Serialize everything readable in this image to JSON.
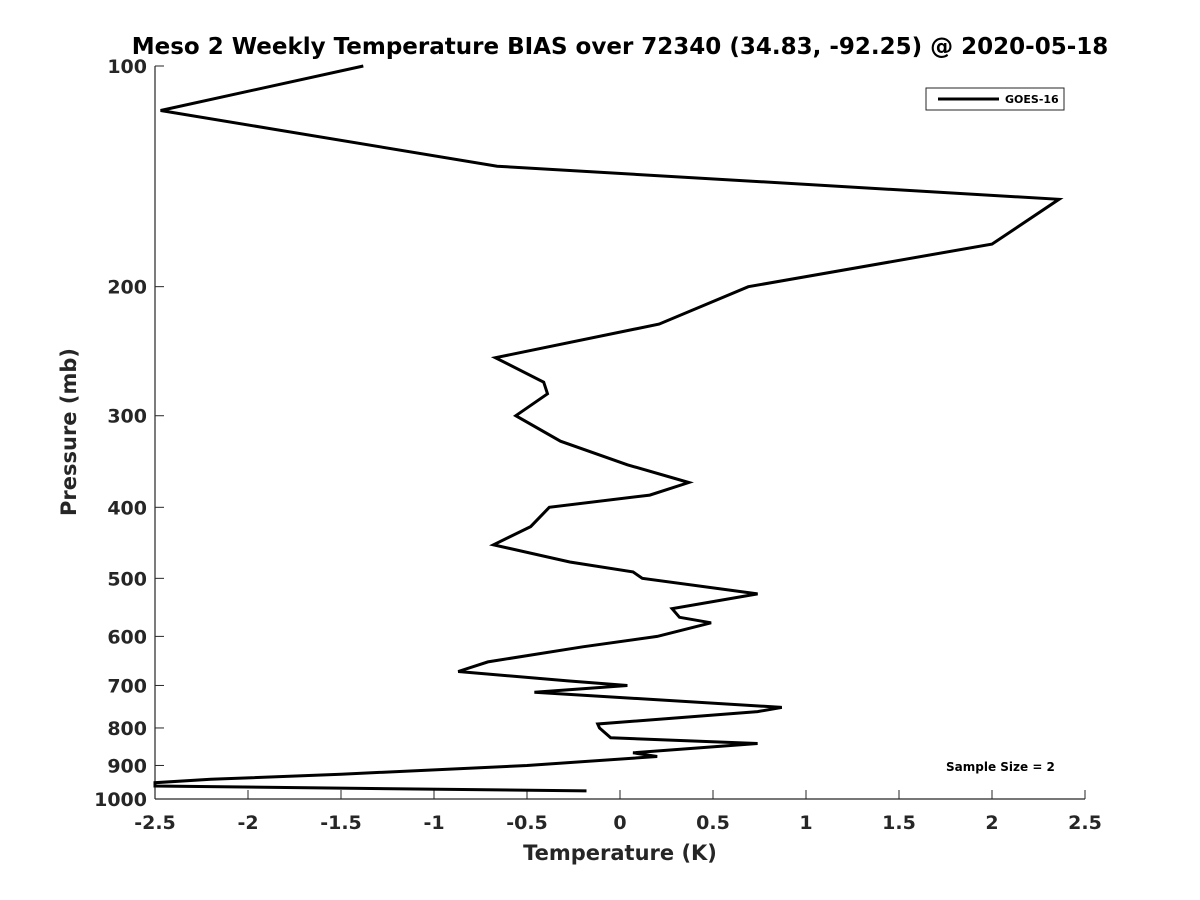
{
  "chart_data": {
    "type": "line",
    "title": "Meso 2 Weekly Temperature BIAS over 72340 (34.83, -92.25) @ 2020-05-18",
    "xlabel": "Temperature (K)",
    "ylabel": "Pressure (mb)",
    "xlim": [
      -2.5,
      2.5
    ],
    "ylim": [
      100,
      1000
    ],
    "yscale": "log",
    "yreversed": true,
    "xticks": [
      -2.5,
      -2,
      -1.5,
      -1,
      -0.5,
      0,
      0.5,
      1,
      1.5,
      2,
      2.5
    ],
    "xtick_labels": [
      "-2.5",
      "-2",
      "-1.5",
      "-1",
      "-0.5",
      "0",
      "0.5",
      "1",
      "1.5",
      "2",
      "2.5"
    ],
    "yticks": [
      100,
      200,
      300,
      400,
      500,
      600,
      700,
      800,
      900,
      1000
    ],
    "ytick_labels": [
      "100",
      "200",
      "300",
      "400",
      "500",
      "600",
      "700",
      "800",
      "900",
      "1000"
    ],
    "grid": false,
    "legend_position": "top-right",
    "series": [
      {
        "name": "GOES-16",
        "color": "#000000",
        "points": [
          [
            -1.38,
            100
          ],
          [
            -2.47,
            115
          ],
          [
            -0.66,
            137
          ],
          [
            2.36,
            152
          ],
          [
            2.0,
            175
          ],
          [
            0.69,
            200
          ],
          [
            0.21,
            225
          ],
          [
            -0.67,
            250
          ],
          [
            -0.41,
            270
          ],
          [
            -0.39,
            280
          ],
          [
            -0.56,
            300
          ],
          [
            -0.32,
            325
          ],
          [
            0.04,
            350
          ],
          [
            0.37,
            370
          ],
          [
            0.16,
            385
          ],
          [
            -0.38,
            400
          ],
          [
            -0.48,
            425
          ],
          [
            -0.68,
            450
          ],
          [
            -0.27,
            475
          ],
          [
            0.07,
            490
          ],
          [
            0.12,
            500
          ],
          [
            0.74,
            525
          ],
          [
            0.28,
            550
          ],
          [
            0.32,
            565
          ],
          [
            0.49,
            575
          ],
          [
            0.2,
            600
          ],
          [
            -0.2,
            620
          ],
          [
            -0.71,
            650
          ],
          [
            -0.87,
            670
          ],
          [
            -0.28,
            690
          ],
          [
            0.04,
            700
          ],
          [
            -0.46,
            715
          ],
          [
            0.87,
            750
          ],
          [
            0.74,
            760
          ],
          [
            -0.12,
            790
          ],
          [
            -0.11,
            800
          ],
          [
            -0.05,
            825
          ],
          [
            0.74,
            840
          ],
          [
            0.07,
            865
          ],
          [
            0.2,
            875
          ],
          [
            -0.5,
            900
          ],
          [
            -1.5,
            925
          ],
          [
            -2.2,
            940
          ],
          [
            -2.5,
            950
          ],
          [
            -2.5,
            960
          ],
          [
            -0.18,
            975
          ]
        ]
      }
    ],
    "annotations": [
      "Sample Size = 2"
    ]
  }
}
